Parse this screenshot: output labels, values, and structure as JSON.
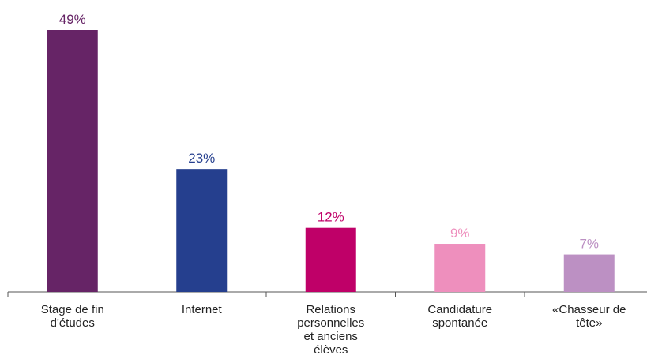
{
  "chart_data": {
    "type": "bar",
    "categories": [
      "Stage de fin d'études",
      "Internet",
      "Relations personnelles et anciens élèves",
      "Candidature spontanée",
      "«Chasseur de tête»"
    ],
    "values": [
      49,
      23,
      12,
      9,
      7
    ],
    "value_labels": [
      "49%",
      "23%",
      "12%",
      "9%",
      "7%"
    ],
    "colors": [
      "#662466",
      "#253f8e",
      "#bf0068",
      "#ee8fbd",
      "#bc90c3"
    ]
  }
}
